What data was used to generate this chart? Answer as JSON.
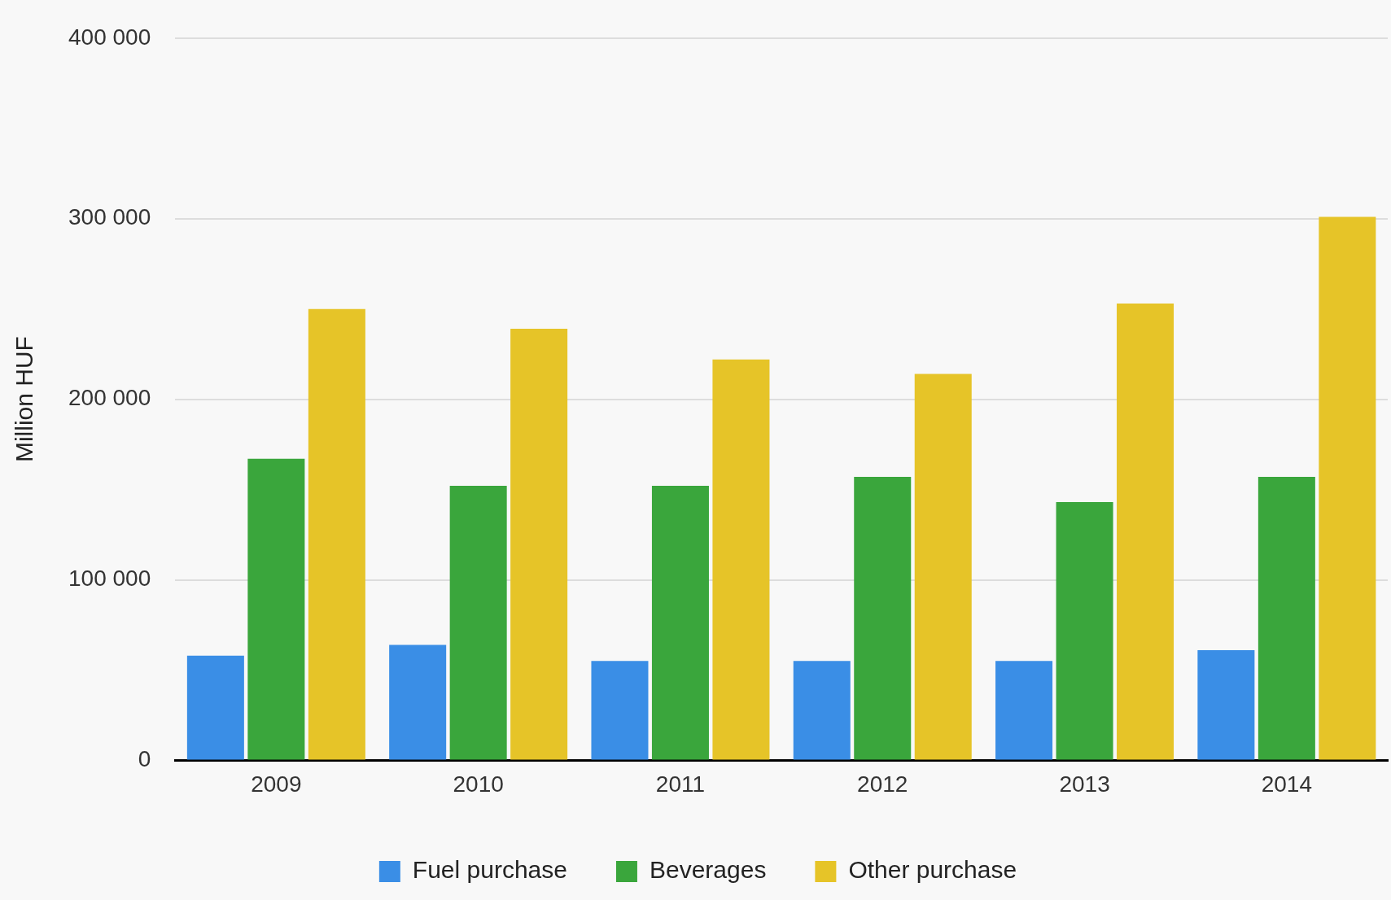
{
  "chart_data": {
    "type": "bar",
    "ylabel": "Million HUF",
    "categories": [
      "2009",
      "2010",
      "2011",
      "2012",
      "2013",
      "2014"
    ],
    "series": [
      {
        "name": "Fuel purchase",
        "color": "#3a8ee6",
        "values": [
          58000,
          64000,
          55000,
          55000,
          55000,
          61000
        ]
      },
      {
        "name": "Beverages",
        "color": "#3aa63c",
        "values": [
          167000,
          152000,
          152000,
          157000,
          143000,
          157000
        ]
      },
      {
        "name": "Other purchase",
        "color": "#e6c428",
        "values": [
          250000,
          239000,
          222000,
          214000,
          253000,
          301000
        ]
      }
    ],
    "ylim": [
      0,
      400000
    ],
    "yticks": [
      {
        "value": 0,
        "label": "0"
      },
      {
        "value": 100000,
        "label": "100 000"
      },
      {
        "value": 200000,
        "label": "200 000"
      },
      {
        "value": 300000,
        "label": "300 000"
      },
      {
        "value": 400000,
        "label": "400 000"
      }
    ],
    "grid": "y",
    "legend": "bottom"
  }
}
